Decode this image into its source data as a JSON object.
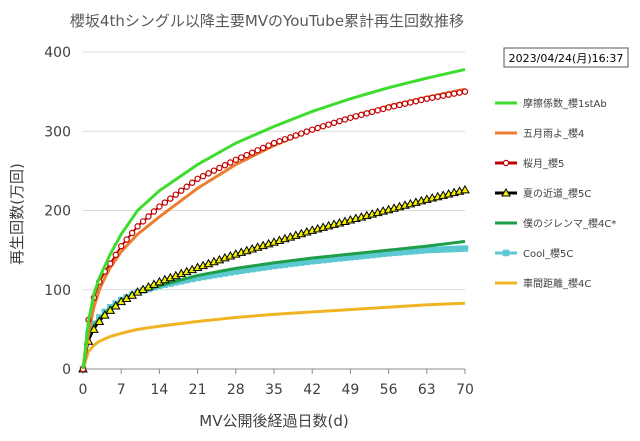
{
  "chart_data": {
    "type": "line",
    "title": "櫻坂4thシングル以降主要MVのYouTube累計再生回数推移",
    "xlabel": "MV公開後経過日数(d)",
    "ylabel": "再生回数(万回)",
    "xlim": [
      0,
      70
    ],
    "ylim": [
      0,
      400
    ],
    "xticks": [
      0,
      7,
      14,
      21,
      28,
      35,
      42,
      49,
      56,
      63,
      70
    ],
    "yticks": [
      0,
      100,
      200,
      300,
      400
    ],
    "grid": "horizontal",
    "legend_position": "right",
    "timestamp": "2023/04/24(月)16:37",
    "series": [
      {
        "name": "摩擦係数_櫻1stAb",
        "color": "#3ddc2e",
        "marker": "none",
        "x": [
          0,
          1,
          2,
          3,
          4,
          5,
          7,
          10,
          14,
          21,
          28,
          35,
          42,
          49,
          56,
          63,
          70
        ],
        "y": [
          0,
          60,
          95,
          115,
          130,
          145,
          170,
          200,
          225,
          258,
          285,
          306,
          325,
          341,
          355,
          367,
          378
        ]
      },
      {
        "name": "五月雨よ_櫻4",
        "color": "#ed7d31",
        "marker": "none",
        "x": [
          0,
          1,
          2,
          3,
          4,
          5,
          7,
          10,
          14,
          21,
          28,
          35,
          42,
          49,
          56,
          63,
          70
        ],
        "y": [
          0,
          45,
          78,
          100,
          115,
          128,
          148,
          170,
          192,
          228,
          258,
          282,
          302,
          318,
          332,
          343,
          353
        ]
      },
      {
        "name": "桜月_櫻5",
        "color": "#c00000",
        "marker": "circle",
        "x": [
          0,
          1,
          2,
          3,
          4,
          5,
          7,
          10,
          14,
          21,
          28,
          35,
          42,
          49,
          56,
          63,
          70
        ],
        "y": [
          0,
          62,
          90,
          110,
          123,
          133,
          155,
          180,
          205,
          240,
          264,
          285,
          302,
          317,
          330,
          341,
          350
        ]
      },
      {
        "name": "夏の近道_櫻5C",
        "color": "#000000",
        "marker": "triangle",
        "x": [
          0,
          1,
          2,
          3,
          4,
          5,
          7,
          10,
          14,
          21,
          28,
          35,
          42,
          49,
          56,
          63,
          70
        ],
        "y": [
          0,
          35,
          50,
          60,
          68,
          74,
          85,
          97,
          110,
          128,
          145,
          160,
          175,
          188,
          201,
          214,
          226
        ]
      },
      {
        "name": "僕のジレンマ_櫻4C*",
        "color": "#1f9e4a",
        "marker": "none",
        "x": [
          0,
          1,
          2,
          3,
          4,
          5,
          7,
          10,
          14,
          21,
          28,
          35,
          42,
          49,
          56,
          63,
          70
        ],
        "y": [
          0,
          40,
          55,
          63,
          70,
          76,
          86,
          96,
          105,
          118,
          127,
          134,
          140,
          145,
          150,
          155,
          161
        ]
      },
      {
        "name": "Cool_櫻5C",
        "color": "#5cc8d2",
        "marker": "square",
        "x": [
          0,
          1,
          2,
          3,
          4,
          5,
          7,
          10,
          14,
          21,
          28,
          35,
          42,
          49,
          56,
          63,
          70
        ],
        "y": [
          0,
          45,
          57,
          65,
          72,
          78,
          87,
          97,
          105,
          115,
          123,
          130,
          136,
          141,
          146,
          150,
          152
        ]
      },
      {
        "name": "車間距離_櫻4C",
        "color": "#f0b323",
        "marker": "none",
        "x": [
          0,
          1,
          2,
          3,
          4,
          5,
          7,
          10,
          14,
          21,
          28,
          35,
          42,
          49,
          56,
          63,
          70
        ],
        "y": [
          0,
          22,
          30,
          35,
          38,
          41,
          45,
          50,
          54,
          60,
          65,
          69,
          72,
          75,
          78,
          81,
          83
        ]
      }
    ]
  }
}
